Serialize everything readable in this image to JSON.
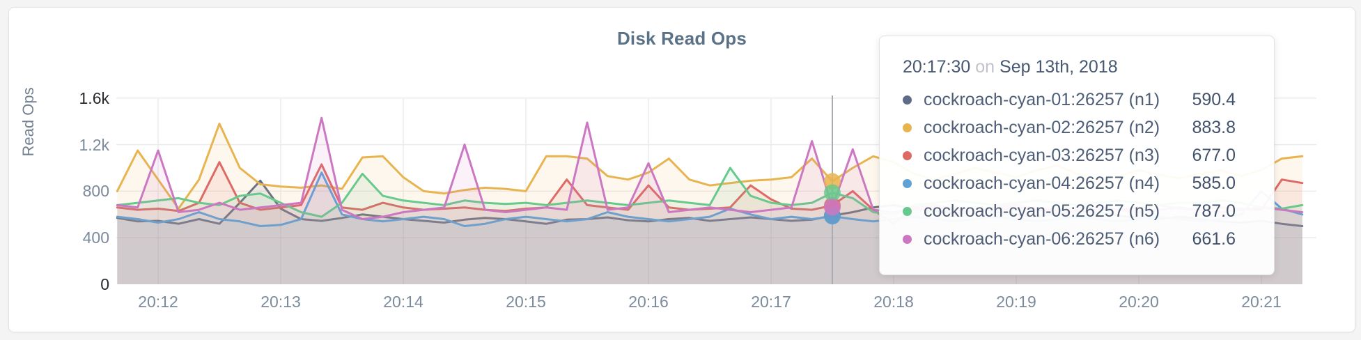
{
  "page": {
    "background": "#f4f4f5",
    "card_background": "#ffffff"
  },
  "chart": {
    "title": "Disk Read Ops",
    "y_axis_label": "Read Ops",
    "y_ticks": [
      {
        "label": "0",
        "value": 0,
        "emphasis": true
      },
      {
        "label": "400",
        "value": 400,
        "emphasis": false
      },
      {
        "label": "800",
        "value": 800,
        "emphasis": false
      },
      {
        "label": "1.2k",
        "value": 1200,
        "emphasis": false
      },
      {
        "label": "1.6k",
        "value": 1600,
        "emphasis": true
      }
    ],
    "x_ticks": [
      "20:12",
      "20:13",
      "20:14",
      "20:15",
      "20:16",
      "20:17",
      "20:18",
      "20:19",
      "20:20",
      "20:21"
    ],
    "grid_color": "#ebebeb",
    "guideline_color": "#a9adb3"
  },
  "chart_data": {
    "type": "line",
    "title": "Disk Read Ops",
    "xlabel": "",
    "ylabel": "Read Ops",
    "ylim": [
      0,
      1600
    ],
    "grid": true,
    "legend_position": "tooltip",
    "x_start": "20:11:40",
    "x_step_seconds": 10,
    "x_tick_labels": [
      "20:12",
      "20:13",
      "20:14",
      "20:15",
      "20:16",
      "20:17",
      "20:18",
      "20:19",
      "20:20",
      "20:21"
    ],
    "hover": {
      "index": 35,
      "time": "20:17:30"
    },
    "series": [
      {
        "name": "cockroach-cyan-01:26257 (n1)",
        "color": "#5f6c87",
        "values": [
          570,
          540,
          545,
          520,
          560,
          520,
          700,
          890,
          650,
          560,
          545,
          570,
          600,
          580,
          560,
          545,
          530,
          555,
          570,
          560,
          540,
          520,
          555,
          560,
          575,
          550,
          540,
          560,
          570,
          545,
          560,
          575,
          560,
          545,
          555,
          590.4,
          620,
          660,
          680,
          650,
          630,
          610,
          640,
          620,
          600,
          580,
          610,
          630,
          615,
          590,
          570,
          560,
          580,
          560,
          540,
          530,
          545,
          520,
          500
        ]
      },
      {
        "name": "cockroach-cyan-02:26257 (n2)",
        "color": "#e8b44f",
        "values": [
          800,
          1150,
          900,
          650,
          900,
          1380,
          1000,
          860,
          840,
          830,
          850,
          820,
          1090,
          1100,
          920,
          800,
          780,
          810,
          830,
          820,
          800,
          1100,
          1100,
          1080,
          930,
          900,
          960,
          1080,
          900,
          850,
          870,
          890,
          900,
          920,
          1080,
          883.8,
          1000,
          1100,
          1050,
          950,
          900,
          950,
          1000,
          960,
          920,
          980,
          1020,
          950,
          900,
          930,
          980,
          940,
          910,
          950,
          980,
          930,
          980,
          1080,
          1100
        ]
      },
      {
        "name": "cockroach-cyan-03:26257 (n3)",
        "color": "#dd6a65",
        "values": [
          660,
          640,
          650,
          630,
          700,
          1050,
          700,
          640,
          660,
          680,
          1030,
          660,
          640,
          700,
          660,
          640,
          650,
          660,
          640,
          630,
          650,
          660,
          900,
          680,
          660,
          640,
          850,
          660,
          640,
          650,
          660,
          850,
          730,
          650,
          640,
          677,
          800,
          640,
          520,
          660,
          680,
          650,
          640,
          660,
          680,
          650,
          640,
          660,
          650,
          640,
          660,
          680,
          650,
          640,
          660,
          650,
          640,
          900,
          870
        ]
      },
      {
        "name": "cockroach-cyan-04:26257 (n4)",
        "color": "#61a2d6",
        "values": [
          580,
          560,
          530,
          560,
          620,
          560,
          540,
          500,
          510,
          560,
          960,
          600,
          560,
          540,
          560,
          580,
          560,
          500,
          520,
          560,
          580,
          560,
          540,
          560,
          620,
          580,
          560,
          540,
          560,
          580,
          650,
          600,
          560,
          580,
          560,
          585,
          560,
          540,
          560,
          580,
          560,
          540,
          560,
          580,
          560,
          540,
          560,
          580,
          560,
          540,
          560,
          580,
          560,
          540,
          560,
          600,
          800,
          650,
          600
        ]
      },
      {
        "name": "cockroach-cyan-05:26257 (n5)",
        "color": "#68c98c",
        "values": [
          680,
          700,
          720,
          740,
          700,
          680,
          760,
          780,
          700,
          620,
          580,
          700,
          950,
          760,
          720,
          700,
          680,
          720,
          700,
          690,
          700,
          680,
          700,
          720,
          700,
          680,
          700,
          720,
          700,
          680,
          1000,
          760,
          700,
          680,
          700,
          787,
          740,
          620,
          600,
          680,
          700,
          720,
          700,
          680,
          700,
          720,
          700,
          680,
          700,
          720,
          700,
          680,
          700,
          700,
          720,
          700,
          660,
          650,
          680
        ]
      },
      {
        "name": "cockroach-cyan-06:26257 (n6)",
        "color": "#cc77c2",
        "values": [
          680,
          660,
          1150,
          620,
          640,
          700,
          640,
          660,
          680,
          700,
          1430,
          640,
          560,
          580,
          620,
          640,
          660,
          1200,
          640,
          620,
          640,
          660,
          640,
          1390,
          640,
          660,
          1040,
          620,
          640,
          660,
          640,
          620,
          640,
          660,
          1230,
          661.6,
          1160,
          640,
          620,
          640,
          660,
          640,
          620,
          640,
          660,
          640,
          620,
          640,
          660,
          640,
          620,
          640,
          660,
          640,
          620,
          640,
          660,
          640,
          620
        ]
      }
    ]
  },
  "tooltip": {
    "time": "20:17:30",
    "on_word": "on",
    "date": "Sep 13th, 2018",
    "rows": [
      {
        "dot_icon": "series-color-dot",
        "color": "#5f6c87",
        "name": "cockroach-cyan-01:26257 (n1)",
        "value": "590.4"
      },
      {
        "dot_icon": "series-color-dot",
        "color": "#e8b44f",
        "name": "cockroach-cyan-02:26257 (n2)",
        "value": "883.8"
      },
      {
        "dot_icon": "series-color-dot",
        "color": "#dd6a65",
        "name": "cockroach-cyan-03:26257 (n3)",
        "value": "677.0"
      },
      {
        "dot_icon": "series-color-dot",
        "color": "#61a2d6",
        "name": "cockroach-cyan-04:26257 (n4)",
        "value": "585.0"
      },
      {
        "dot_icon": "series-color-dot",
        "color": "#68c98c",
        "name": "cockroach-cyan-05:26257 (n5)",
        "value": "787.0"
      },
      {
        "dot_icon": "series-color-dot",
        "color": "#cc77c2",
        "name": "cockroach-cyan-06:26257 (n6)",
        "value": "661.6"
      }
    ]
  }
}
